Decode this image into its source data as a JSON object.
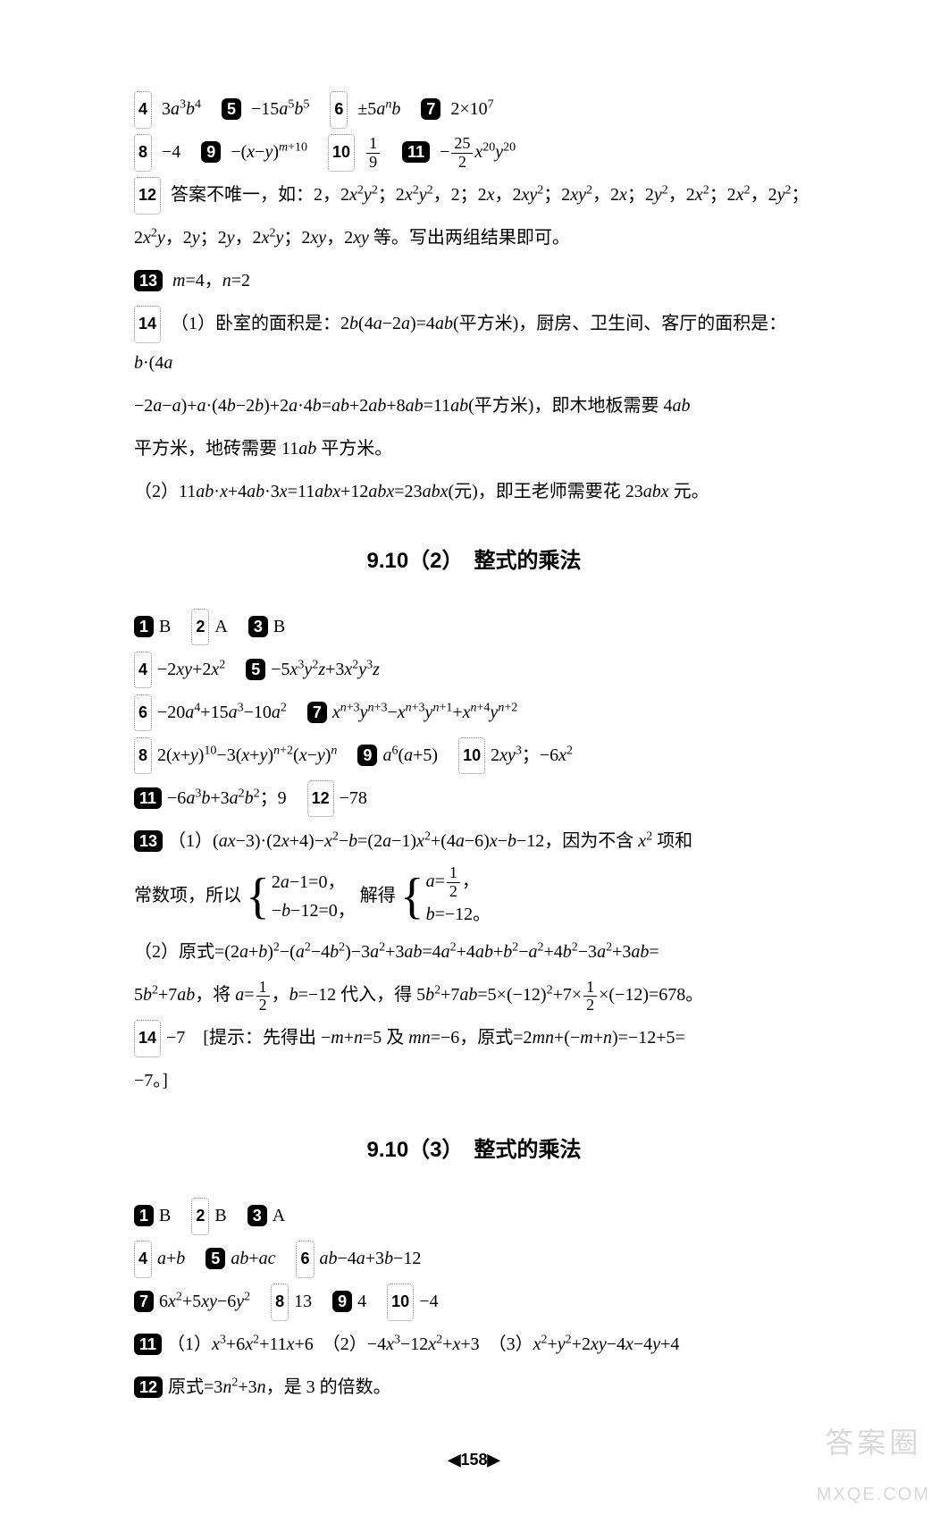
{
  "block_a": {
    "q4": {
      "num": "4",
      "text": "3<span class='italic'>a</span><sup>3</sup><span class='italic'>b</span><sup>4</sup>"
    },
    "q5": {
      "num": "5",
      "text": "−15<span class='italic'>a</span><sup>5</sup><span class='italic'>b</span><sup>5</sup>"
    },
    "q6": {
      "num": "6",
      "text": "±5<span class='italic'>a</span><sup><span class='italic'>n</span></sup><span class='italic'>b</span>"
    },
    "q7": {
      "num": "7",
      "text": "2×10<sup>7</sup>"
    },
    "q8": {
      "num": "8",
      "text": "−4"
    },
    "q9": {
      "num": "9",
      "text": "−(<span class='italic'>x</span>−<span class='italic'>y</span>)<sup><span class='italic'>m</span>+10</sup>"
    },
    "q10": {
      "num": "10",
      "frac_n": "1",
      "frac_d": "9"
    },
    "q11": {
      "num": "11",
      "pre": "−",
      "frac_n": "25",
      "frac_d": "2",
      "post": "<span class='italic'>x</span><sup>20</sup><span class='italic'>y</span><sup>20</sup>"
    },
    "q12": {
      "num": "12",
      "text1": "答案不唯一，如：2，2<span class='italic'>x</span><sup>2</sup><span class='italic'>y</span><sup>2</sup>；2<span class='italic'>x</span><sup>2</sup><span class='italic'>y</span><sup>2</sup>，2；2<span class='italic'>x</span>，2<span class='italic'>xy</span><sup>2</sup>；2<span class='italic'>xy</span><sup>2</sup>，2<span class='italic'>x</span>；2<span class='italic'>y</span><sup>2</sup>，2<span class='italic'>x</span><sup>2</sup>；2<span class='italic'>x</span><sup>2</sup>，2<span class='italic'>y</span><sup>2</sup>；",
      "text2": "2<span class='italic'>x</span><sup>2</sup><span class='italic'>y</span>，2<span class='italic'>y</span>；2<span class='italic'>y</span>，2<span class='italic'>x</span><sup>2</sup><span class='italic'>y</span>；2<span class='italic'>xy</span>，2<span class='italic'>xy</span> 等。写出两组结果即可。"
    },
    "q13": {
      "num": "13",
      "text": "<span class='italic'>m</span>=4，<span class='italic'>n</span>=2"
    },
    "q14": {
      "num": "14",
      "p1": "（1）卧室的面积是：2<span class='italic'>b</span>(4<span class='italic'>a</span>−2<span class='italic'>a</span>)=4<span class='italic'>ab</span>(平方米)，厨房、卫生间、客厅的面积是：<span class='italic'>b</span>·(4<span class='italic'>a</span>",
      "p2": "−2<span class='italic'>a</span>−<span class='italic'>a</span>)+<span class='italic'>a</span>·(4<span class='italic'>b</span>−2<span class='italic'>b</span>)+2<span class='italic'>a</span>·4<span class='italic'>b</span>=<span class='italic'>ab</span>+2<span class='italic'>ab</span>+8<span class='italic'>ab</span>=11<span class='italic'>ab</span>(平方米)，即木地板需要 4<span class='italic'>ab</span>",
      "p3": "平方米，地砖需要 11<span class='italic'>ab</span> 平方米。",
      "p4": "（2）11<span class='italic'>ab</span>·<span class='italic'>x</span>+4<span class='italic'>ab</span>·3<span class='italic'>x</span>=11<span class='italic'>abx</span>+12<span class='italic'>abx</span>=23<span class='italic'>abx</span>(元)，即王老师需要花 23<span class='italic'>abx</span> 元。"
    }
  },
  "section_b_title": "9.10（2）　整式的乘法",
  "block_b": {
    "r1": [
      {
        "num": "1",
        "box": true,
        "t": "B"
      },
      {
        "num": "2",
        "box": false,
        "t": "A"
      },
      {
        "num": "3",
        "box": true,
        "t": "B"
      }
    ],
    "q4": {
      "num": "4",
      "text": "−2<span class='italic'>xy</span>+2<span class='italic'>x</span><sup>2</sup>"
    },
    "q5": {
      "num": "5",
      "text": "−5<span class='italic'>x</span><sup>3</sup><span class='italic'>y</span><sup>2</sup><span class='italic'>z</span>+3<span class='italic'>x</span><sup>2</sup><span class='italic'>y</span><sup>3</sup><span class='italic'>z</span>"
    },
    "q6": {
      "num": "6",
      "text": "−20<span class='italic'>a</span><sup>4</sup>+15<span class='italic'>a</span><sup>3</sup>−10<span class='italic'>a</span><sup>2</sup>"
    },
    "q7": {
      "num": "7",
      "text": "<span class='italic'>x</span><sup><span class='italic'>n</span>+3</sup><span class='italic'>y</span><sup><span class='italic'>n</span>+3</sup>−<span class='italic'>x</span><sup><span class='italic'>n</span>+3</sup><span class='italic'>y</span><sup><span class='italic'>n</span>+1</sup>+<span class='italic'>x</span><sup><span class='italic'>n</span>+4</sup><span class='italic'>y</span><sup><span class='italic'>n</span>+2</sup>"
    },
    "q8": {
      "num": "8",
      "text": "2(<span class='italic'>x</span>+<span class='italic'>y</span>)<sup>10</sup>−3(<span class='italic'>x</span>+<span class='italic'>y</span>)<sup><span class='italic'>n</span>+2</sup>(<span class='italic'>x</span>−<span class='italic'>y</span>)<sup><span class='italic'>n</span></sup>"
    },
    "q9": {
      "num": "9",
      "text": "<span class='italic'>a</span><sup>6</sup>(<span class='italic'>a</span>+5)"
    },
    "q10": {
      "num": "10",
      "text": "2<span class='italic'>xy</span><sup>3</sup>；−6<span class='italic'>x</span><sup>2</sup>"
    },
    "q11": {
      "num": "11",
      "text": "−6<span class='italic'>a</span><sup>3</sup><span class='italic'>b</span>+3<span class='italic'>a</span><sup>2</sup><span class='italic'>b</span><sup>2</sup>；9"
    },
    "q12": {
      "num": "12",
      "text": "−78"
    },
    "q13": {
      "num": "13",
      "l1": "（1）(<span class='italic'>ax</span>−3)·(2<span class='italic'>x</span>+4)−<span class='italic'>x</span><sup>2</sup>−<span class='italic'>b</span>=(2<span class='italic'>a</span>−1)<span class='italic'>x</span><sup>2</sup>+(4<span class='italic'>a</span>−6)<span class='italic'>x</span>−<span class='italic'>b</span>−12，因为不含 <span class='italic'>x</span><sup>2</sup> 项和",
      "l2_pre": "常数项，所以",
      "sys1_a": "2<span class='italic'>a</span>−1=0，",
      "sys1_b": "−<span class='italic'>b</span>−12=0，",
      "mid": "解得",
      "sys2_a": "<span class='italic'>a</span>=<span class='frac'><span class='n'>1</span><span class='d'>2</span></span>，",
      "sys2_b": "<span class='italic'>b</span>=−12。",
      "l3": "（2）原式=(2<span class='italic'>a</span>+<span class='italic'>b</span>)<sup>2</sup>−(<span class='italic'>a</span><sup>2</sup>−4<span class='italic'>b</span><sup>2</sup>)−3<span class='italic'>a</span><sup>2</sup>+3<span class='italic'>ab</span>=4<span class='italic'>a</span><sup>2</sup>+4<span class='italic'>ab</span>+<span class='italic'>b</span><sup>2</sup>−<span class='italic'>a</span><sup>2</sup>+4<span class='italic'>b</span><sup>2</sup>−3<span class='italic'>a</span><sup>2</sup>+3<span class='italic'>ab</span>=",
      "l4_a": "5<span class='italic'>b</span><sup>2</sup>+7<span class='italic'>ab</span>，将 <span class='italic'>a</span>=",
      "l4_b": "，<span class='italic'>b</span>=−12 代入，得 5<span class='italic'>b</span><sup>2</sup>+7<span class='italic'>ab</span>=5×(−12)<sup>2</sup>+7×",
      "l4_c": "×(−12)=678。"
    },
    "q14": {
      "num": "14",
      "l1": "−7　[提示：先得出 −<span class='italic'>m</span>+<span class='italic'>n</span>=5 及 <span class='italic'>mn</span>=−6，原式=2<span class='italic'>mn</span>+(−<span class='italic'>m</span>+<span class='italic'>n</span>)=−12+5=",
      "l2": "−7。]"
    }
  },
  "section_c_title": "9.10（3）　整式的乘法",
  "block_c": {
    "r1": [
      {
        "num": "1",
        "box": true,
        "t": "B"
      },
      {
        "num": "2",
        "box": false,
        "t": "B"
      },
      {
        "num": "3",
        "box": true,
        "t": "A"
      }
    ],
    "q4": {
      "num": "4",
      "text": "<span class='italic'>a</span>+<span class='italic'>b</span>"
    },
    "q5": {
      "num": "5",
      "text": "<span class='italic'>ab</span>+<span class='italic'>ac</span>"
    },
    "q6": {
      "num": "6",
      "text": "<span class='italic'>ab</span>−4<span class='italic'>a</span>+3<span class='italic'>b</span>−12"
    },
    "q7": {
      "num": "7",
      "text": "6<span class='italic'>x</span><sup>2</sup>+5<span class='italic'>xy</span>−6<span class='italic'>y</span><sup>2</sup>"
    },
    "q8": {
      "num": "8",
      "text": "13"
    },
    "q9": {
      "num": "9",
      "text": "4"
    },
    "q10": {
      "num": "10",
      "text": "−4"
    },
    "q11": {
      "num": "11",
      "text": "（1）<span class='italic'>x</span><sup>3</sup>+6<span class='italic'>x</span><sup>2</sup>+11<span class='italic'>x</span>+6　（2）−4<span class='italic'>x</span><sup>3</sup>−12<span class='italic'>x</span><sup>2</sup>+<span class='italic'>x</span>+3　（3）<span class='italic'>x</span><sup>2</sup>+<span class='italic'>y</span><sup>2</sup>+2<span class='italic'>xy</span>−4<span class='italic'>x</span>−4<span class='italic'>y</span>+4"
    },
    "q12": {
      "num": "12",
      "text": "原式=3<span class='italic'>n</span><sup>2</sup>+3<span class='italic'>n</span>，是 3 的倍数。"
    }
  },
  "page_num": "158",
  "watermark": {
    "line1": "答案圈",
    "line2": "MXQE.COM"
  }
}
